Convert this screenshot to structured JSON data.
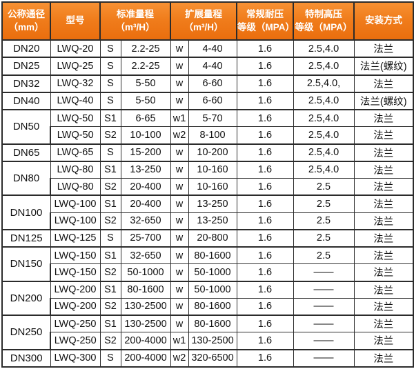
{
  "colors": {
    "header_orange_top": "#f79134",
    "header_orange_bottom": "#ea6e0e",
    "header_text": "#ffffff",
    "border": "#2b2b2b",
    "body_text": "#111111",
    "background": "#ffffff"
  },
  "header": {
    "dn": [
      "公称通径",
      "（mm）"
    ],
    "model": "型号",
    "standard": [
      "标准量程",
      "（m³/H）"
    ],
    "extended": [
      "扩展量程",
      "（m³/H）"
    ],
    "regular_pressure": [
      "常规耐压",
      "等级（MPA）"
    ],
    "high_pressure": [
      "特制高压",
      "等级（MPA）"
    ],
    "install": "安装方式"
  },
  "rows": [
    {
      "dn": "DN20",
      "dn_rowspan": 1,
      "group_start": true,
      "model": "LWQ-20",
      "s": "S",
      "std": "2.2-25",
      "w": "w",
      "ext": "4-40",
      "reg": "1.6",
      "high": "2.5,4.0",
      "install": "法兰"
    },
    {
      "dn": "DN25",
      "dn_rowspan": 1,
      "group_start": true,
      "model": "LWQ-25",
      "s": "S",
      "std": "2.2-25",
      "w": "w",
      "ext": "4-40",
      "reg": "1.6",
      "high": "2.5,4.0",
      "install": "法兰(螺纹)"
    },
    {
      "dn": "DN32",
      "dn_rowspan": 1,
      "group_start": true,
      "model": "LWQ-32",
      "s": "S",
      "std": "5-50",
      "w": "w",
      "ext": "6-60",
      "reg": "1.6",
      "high": "2.5,4.0,",
      "install": "法兰"
    },
    {
      "dn": "DN40",
      "dn_rowspan": 1,
      "group_start": true,
      "model": "LWQ-40",
      "s": "S",
      "std": "5-50",
      "w": "w",
      "ext": "6-60",
      "reg": "1.6",
      "high": "2.5,4.0",
      "install": "法兰(螺纹)"
    },
    {
      "dn": "DN50",
      "dn_rowspan": 2,
      "group_start": true,
      "model": "LWQ-50",
      "s": "S1",
      "std": "6-65",
      "w": "w1",
      "ext": "5-70",
      "reg": "1.6",
      "high": "2.5,4.0",
      "install": "法兰"
    },
    {
      "dn": null,
      "dn_rowspan": 0,
      "group_start": false,
      "model": "LWQ-50",
      "s": "S2",
      "std": "10-100",
      "w": "w2",
      "ext": "8-100",
      "reg": "1.6",
      "high": "2.5,4.0",
      "install": "法兰"
    },
    {
      "dn": "DN65",
      "dn_rowspan": 1,
      "group_start": true,
      "model": "LWQ-65",
      "s": "S",
      "std": "15-200",
      "w": "w",
      "ext": "10-200",
      "reg": "1.6",
      "high": "2.5,4.0",
      "install": "法兰"
    },
    {
      "dn": "DN80",
      "dn_rowspan": 2,
      "group_start": true,
      "model": "LWQ-80",
      "s": "S1",
      "std": "13-250",
      "w": "w",
      "ext": "10-160",
      "reg": "1.6",
      "high": "2.5,4.0",
      "install": "法兰"
    },
    {
      "dn": null,
      "dn_rowspan": 0,
      "group_start": false,
      "model": "LWQ-80",
      "s": "S2",
      "std": "20-400",
      "w": "w",
      "ext": "10-160",
      "reg": "1.6",
      "high": "2.5",
      "install": "法兰"
    },
    {
      "dn": "DN100",
      "dn_rowspan": 2,
      "group_start": true,
      "model": "LWQ-100",
      "s": "S1",
      "std": "20-400",
      "w": "w",
      "ext": "13-250",
      "reg": "1.6",
      "high": "2.5",
      "install": "法兰"
    },
    {
      "dn": null,
      "dn_rowspan": 0,
      "group_start": false,
      "model": "LWQ-100",
      "s": "S2",
      "std": "32-650",
      "w": "w",
      "ext": "13-250",
      "reg": "1.6",
      "high": "2.5",
      "install": "法兰"
    },
    {
      "dn": "DN125",
      "dn_rowspan": 1,
      "group_start": true,
      "model": "LWQ-125",
      "s": "S",
      "std": "25-700",
      "w": "w",
      "ext": "20-800",
      "reg": "1.6",
      "high": "2.5",
      "install": "法兰"
    },
    {
      "dn": "DN150",
      "dn_rowspan": 2,
      "group_start": true,
      "model": "LWQ-150",
      "s": "S1",
      "std": "32-650",
      "w": "w",
      "ext": "80-1600",
      "reg": "1.6",
      "high": "2.5",
      "install": "法兰"
    },
    {
      "dn": null,
      "dn_rowspan": 0,
      "group_start": false,
      "model": "LWQ-150",
      "s": "S2",
      "std": "50-1000",
      "w": "w",
      "ext": "50-1000",
      "reg": "1.6",
      "high": "——",
      "install": "法兰"
    },
    {
      "dn": "DN200",
      "dn_rowspan": 2,
      "group_start": true,
      "model": "LWQ-200",
      "s": "S1",
      "std": "80-1600",
      "w": "w",
      "ext": "50-1000",
      "reg": "1.6",
      "high": "——",
      "install": "法兰"
    },
    {
      "dn": null,
      "dn_rowspan": 0,
      "group_start": false,
      "model": "LWQ-200",
      "s": "S2",
      "std": "130-2500",
      "w": "w",
      "ext": "80-1600",
      "reg": "1.6",
      "high": "——",
      "install": "法兰"
    },
    {
      "dn": "DN250",
      "dn_rowspan": 2,
      "group_start": true,
      "model": "LWQ-250",
      "s": "S1",
      "std": "130-2500",
      "w": "w",
      "ext": "80-1600",
      "reg": "1.6",
      "high": "——",
      "install": "法兰"
    },
    {
      "dn": null,
      "dn_rowspan": 0,
      "group_start": false,
      "model": "LWQ-250",
      "s": "S2",
      "std": "200-4000",
      "w": "w1",
      "ext": "130-2500",
      "reg": "1.6",
      "high": "——",
      "install": "法兰"
    },
    {
      "dn": "DN300",
      "dn_rowspan": 1,
      "group_start": true,
      "model": "LWQ-300",
      "s": "S",
      "std": "200-4000",
      "w": "w2",
      "ext": "320-6500",
      "reg": "1.6",
      "high": "——",
      "install": "法兰"
    }
  ]
}
